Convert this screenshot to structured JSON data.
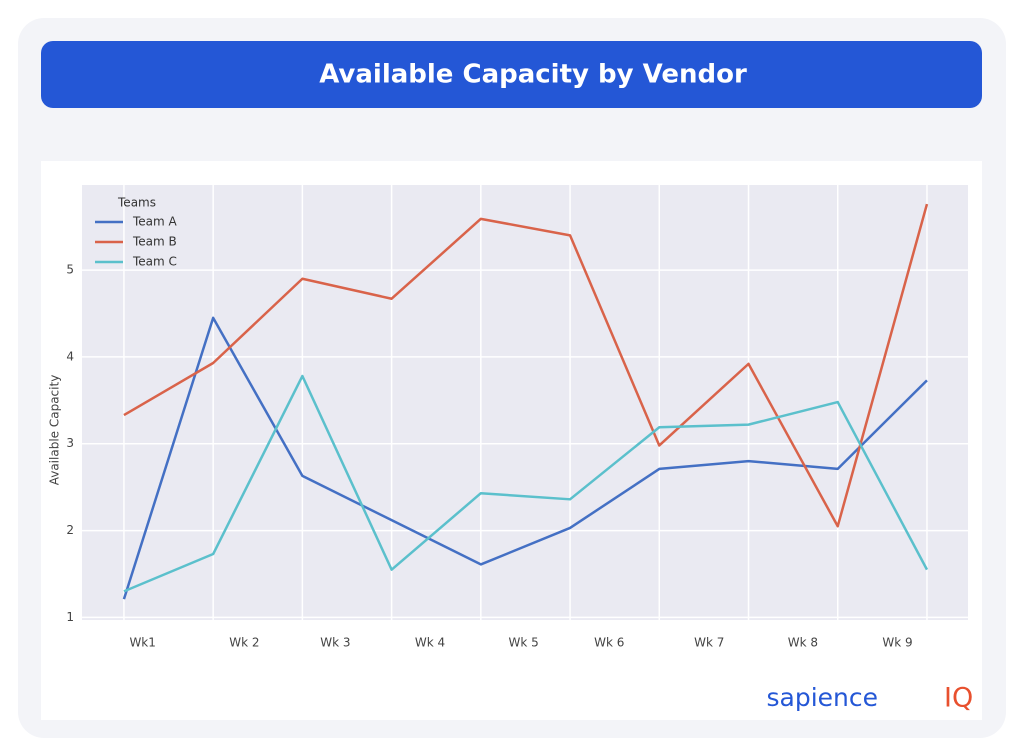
{
  "chart_data": {
    "type": "line",
    "title": "Available Capacity by Vendor",
    "y_label": "Available Capacity",
    "legend_title": "Teams",
    "legend": "upper left",
    "grid": true,
    "x": [
      0,
      1,
      2,
      3,
      4,
      5,
      6,
      7,
      8,
      9
    ],
    "xlim": [
      -0.47,
      9.46
    ],
    "xticks": [
      {
        "value": 0.21,
        "label": "Wk1"
      },
      {
        "value": 1.35,
        "label": "Wk 2"
      },
      {
        "value": 2.37,
        "label": "Wk 3"
      },
      {
        "value": 3.43,
        "label": "Wk 4"
      },
      {
        "value": 4.48,
        "label": "Wk 5"
      },
      {
        "value": 5.44,
        "label": "Wk 6"
      },
      {
        "value": 6.56,
        "label": "Wk 7"
      },
      {
        "value": 7.61,
        "label": "Wk 8"
      },
      {
        "value": 8.67,
        "label": "Wk 9"
      }
    ],
    "ylim": [
      0.97,
      5.98
    ],
    "yticks": [
      1,
      2,
      3,
      4,
      5
    ],
    "series": [
      {
        "name": "Team A",
        "color": "#4470c4",
        "values": [
          1.21,
          4.45,
          2.63,
          2.12,
          1.61,
          2.03,
          2.71,
          2.8,
          2.71,
          3.73
        ]
      },
      {
        "name": "Team B",
        "color": "#d9634a",
        "values": [
          3.33,
          3.93,
          4.9,
          4.67,
          5.59,
          5.4,
          2.98,
          3.92,
          2.05,
          5.76
        ]
      },
      {
        "name": "Team C",
        "color": "#5bc0cc",
        "values": [
          1.3,
          1.73,
          3.78,
          1.55,
          2.43,
          2.36,
          3.19,
          3.22,
          3.48,
          1.55
        ]
      }
    ]
  },
  "brand": {
    "name": "sapience",
    "mark": "IQ"
  }
}
